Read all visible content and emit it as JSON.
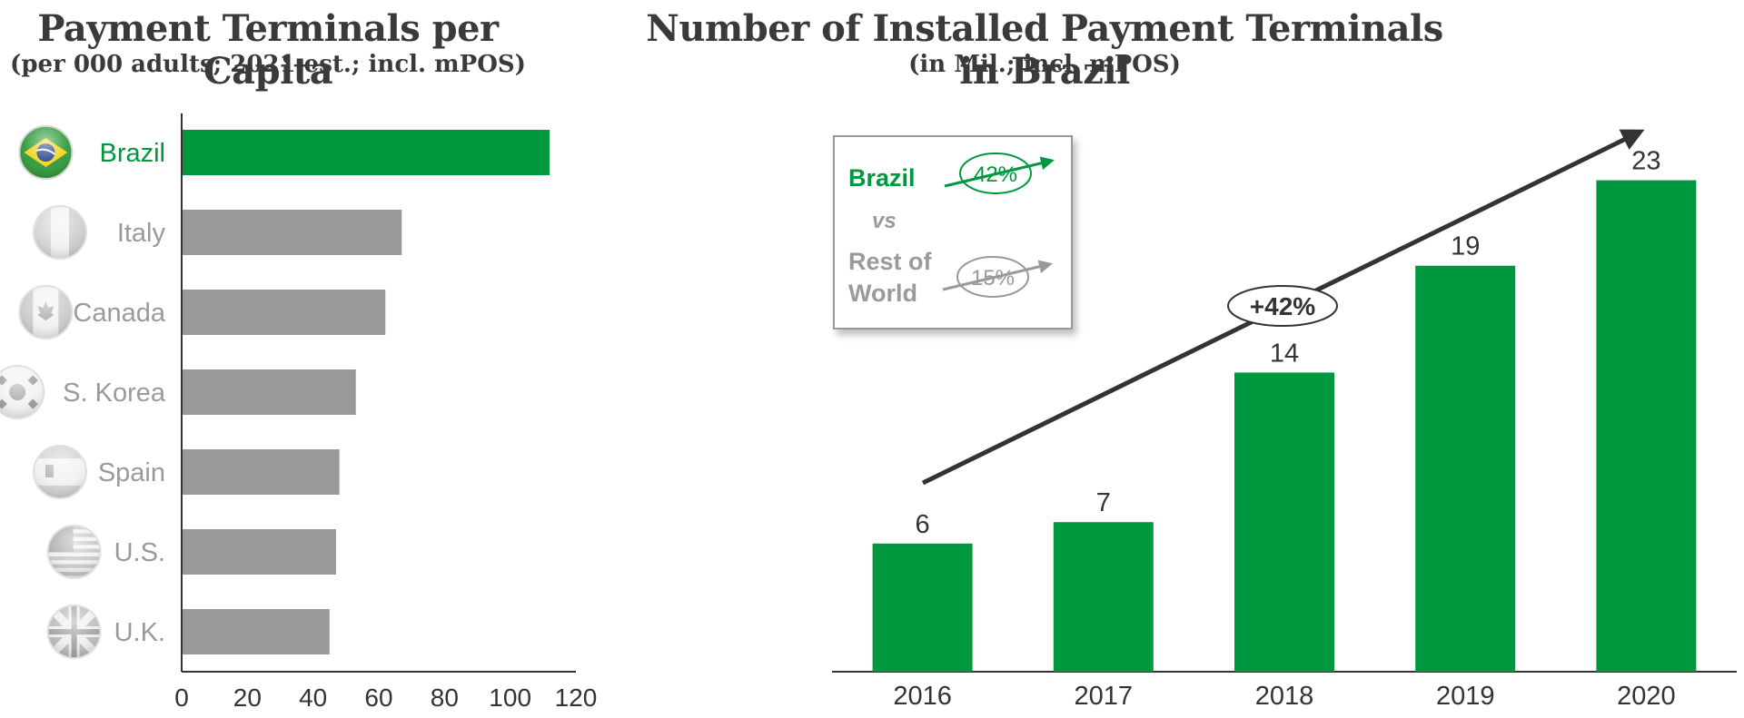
{
  "left_chart": {
    "title": "Payment Terminals per Capita",
    "subtitle": "(per 000 adults; 2021 est.; incl. mPOS)"
  },
  "right_chart": {
    "title": "Number of Installed Payment Terminals in Brazil",
    "subtitle": "(in Mil.; incl. mPOS)",
    "growth_label": "+42%",
    "legend_box": {
      "brazil_label": "Brazil",
      "brazil_rate": "42%",
      "vs_label": "vs",
      "row_label_line1": "Rest of",
      "row_label_line2": "World",
      "row_rate": "15%"
    }
  },
  "colors": {
    "highlight": "#00983F",
    "neutral": "#999999",
    "axis": "#333333",
    "text_dark": "#3a3a3a",
    "label_gray": "#9a9a9a"
  },
  "chart_data": [
    {
      "type": "bar",
      "orientation": "horizontal",
      "title": "Payment Terminals per Capita",
      "subtitle": "(per 000 adults; 2021 est.; incl. mPOS)",
      "categories": [
        "Brazil",
        "Italy",
        "Canada",
        "S. Korea",
        "Spain",
        "U.S.",
        "U.K."
      ],
      "values": [
        112,
        67,
        62,
        53,
        48,
        47,
        45
      ],
      "highlight": "Brazil",
      "xlim": [
        0,
        120
      ],
      "xticks": [
        0,
        20,
        40,
        60,
        80,
        100,
        120
      ],
      "icons": [
        "brazil-flag-icon",
        "italy-flag-icon",
        "canada-flag-icon",
        "south-korea-flag-icon",
        "spain-flag-icon",
        "us-flag-icon",
        "uk-flag-icon"
      ],
      "grid": false
    },
    {
      "type": "bar",
      "orientation": "vertical",
      "title": "Number of Installed Payment Terminals in Brazil",
      "subtitle": "(in Mil.; incl. mPOS)",
      "categories": [
        "2016",
        "2017",
        "2018",
        "2019",
        "2020"
      ],
      "values": [
        6,
        7,
        14,
        19,
        23
      ],
      "data_labels": [
        "6",
        "7",
        "14",
        "19",
        "23"
      ],
      "ylim": [
        0,
        25
      ],
      "annotations": [
        "+42%"
      ],
      "grid": false
    }
  ]
}
